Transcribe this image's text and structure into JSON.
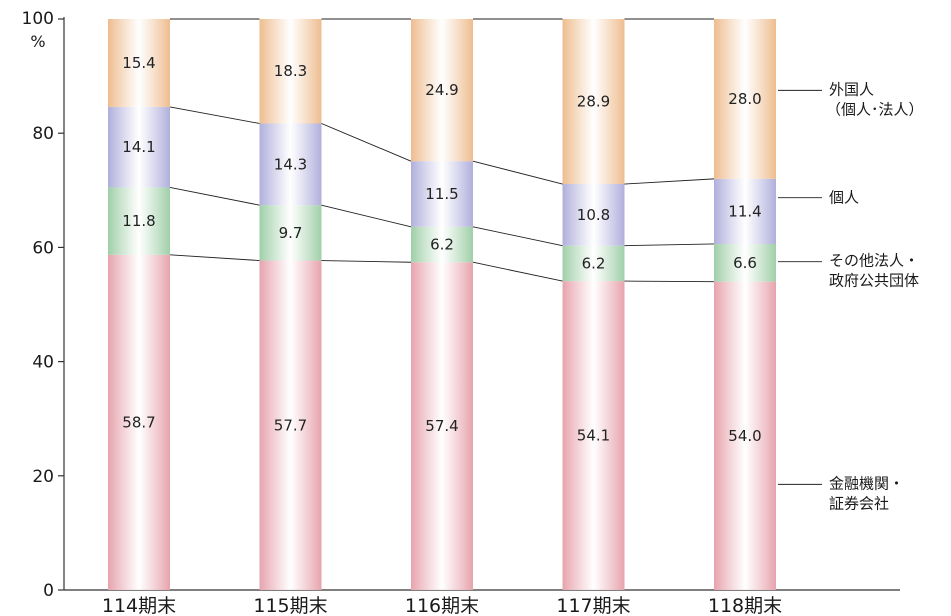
{
  "chart_data": {
    "type": "bar",
    "stacked": true,
    "categories": [
      "114期末",
      "115期末",
      "116期末",
      "117期末",
      "118期末"
    ],
    "series": [
      {
        "name": "金融機関・\n証券会社",
        "values": [
          58.7,
          57.7,
          57.4,
          54.1,
          54.0
        ],
        "color": "#e7a3ad"
      },
      {
        "name": "その他法人・\n政府公共団体",
        "values": [
          11.8,
          9.7,
          6.2,
          6.2,
          6.6
        ],
        "color": "#9fcfa8"
      },
      {
        "name": "個人",
        "values": [
          14.1,
          14.3,
          11.5,
          10.8,
          11.4
        ],
        "color": "#b0afdc"
      },
      {
        "name": "外国人\n（個人･法人）",
        "values": [
          15.4,
          18.3,
          24.9,
          28.9,
          28.0
        ],
        "color": "#eebd8f"
      }
    ],
    "y_unit": "%",
    "ylim": [
      0,
      100
    ],
    "yticks": [
      0,
      20,
      40,
      60,
      80,
      100
    ],
    "grid": false,
    "legend_placement": "right"
  }
}
